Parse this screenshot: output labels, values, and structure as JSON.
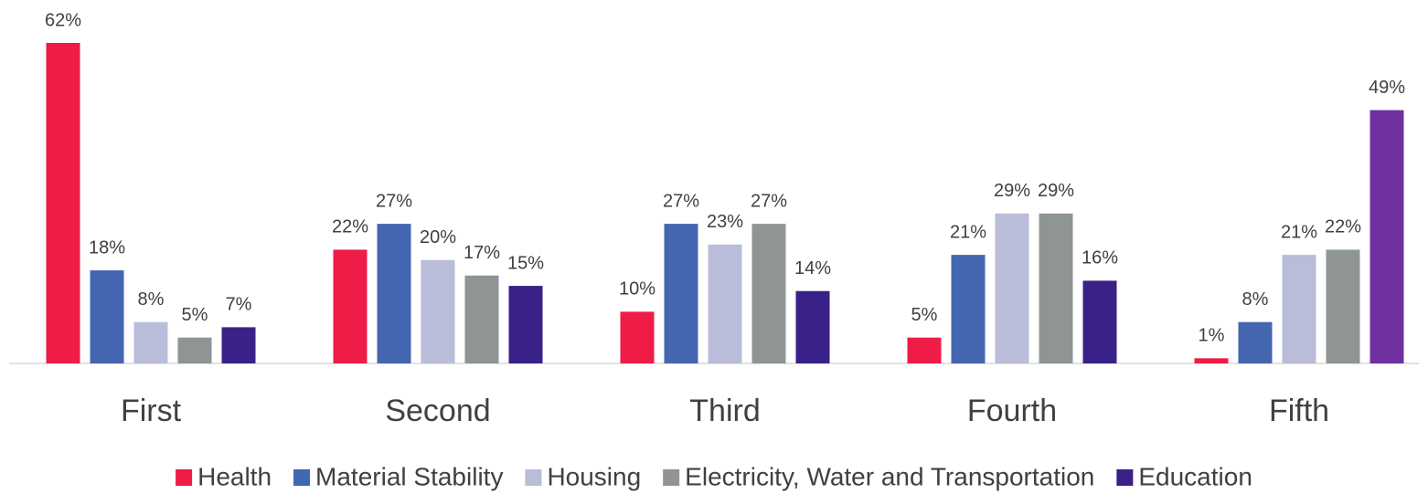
{
  "chart_data": {
    "type": "bar",
    "categories": [
      "First",
      "Second",
      "Third",
      "Fourth",
      "Fifth"
    ],
    "series": [
      {
        "name": "Health",
        "color": "#ee1c47",
        "values": [
          62,
          22,
          10,
          5,
          1
        ],
        "value_labels": [
          "62%",
          "22%",
          "10%",
          "5%",
          "1%"
        ]
      },
      {
        "name": "Material Stability",
        "color": "#4466b0",
        "values": [
          18,
          27,
          27,
          21,
          8
        ],
        "value_labels": [
          "18%",
          "27%",
          "27%",
          "21%",
          "8%"
        ]
      },
      {
        "name": "Housing",
        "color": "#b9bdd9",
        "values": [
          8,
          20,
          23,
          29,
          21
        ],
        "value_labels": [
          "8%",
          "20%",
          "23%",
          "29%",
          "21%"
        ]
      },
      {
        "name": "Electricity, Water and Transportation",
        "color": "#8f9494",
        "values": [
          5,
          17,
          27,
          29,
          22
        ],
        "value_labels": [
          "5%",
          "17%",
          "27%",
          "29%",
          "22%"
        ]
      },
      {
        "name": "Education",
        "color": "#3a2187",
        "colors": [
          "#3a2187",
          "#3a2187",
          "#3a2187",
          "#3a2187",
          "#7030a0"
        ],
        "values": [
          7,
          15,
          14,
          16,
          49
        ],
        "value_labels": [
          "7%",
          "15%",
          "14%",
          "16%",
          "49%"
        ]
      }
    ],
    "legend": "bottom",
    "grid": false
  }
}
